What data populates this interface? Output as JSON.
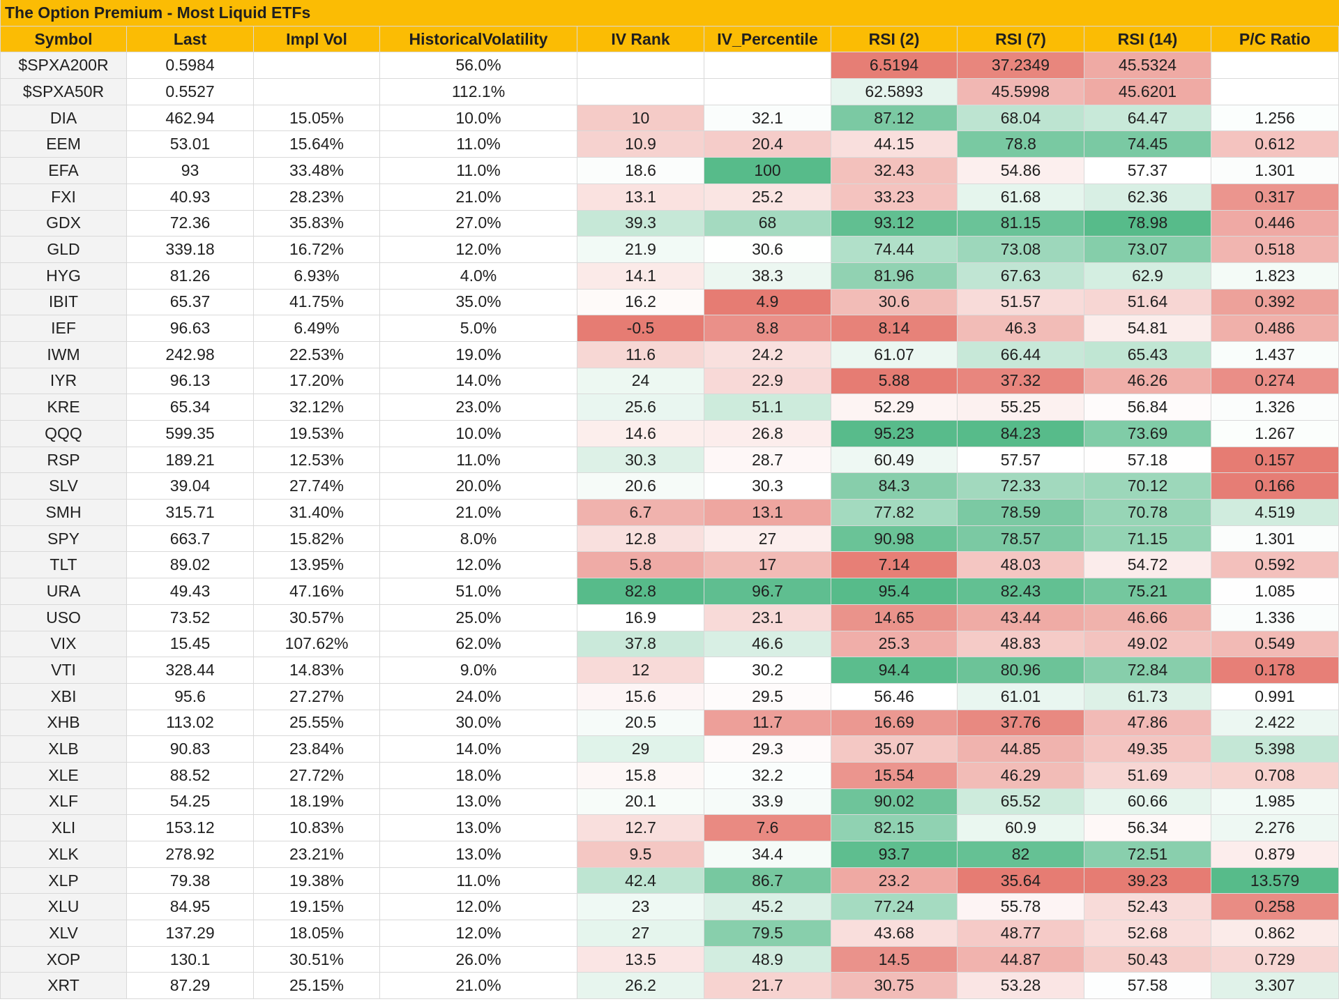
{
  "title": "The Option Premium - Most Liquid ETFs",
  "colors": {
    "header_bg": "#fbbc04",
    "low": "#e67c73",
    "mid": "#ffffff",
    "high": "#57bb8a",
    "symbol_col_bg": "#f3f3f3"
  },
  "columns": [
    "Symbol",
    "Last",
    "Impl Vol",
    "HistoricalVolatility",
    "IV Rank",
    "IV_Percentile",
    "RSI (2)",
    "RSI (7)",
    "RSI (14)",
    "P/C Ratio"
  ],
  "rows": [
    [
      "$SPXA200R",
      "0.5984",
      "",
      "56.0%",
      "",
      "",
      "6.5194",
      "37.2349",
      "45.5324",
      ""
    ],
    [
      "$SPXA50R",
      "0.5527",
      "",
      "112.1%",
      "",
      "",
      "62.5893",
      "45.5998",
      "45.6201",
      ""
    ],
    [
      "DIA",
      "462.94",
      "15.05%",
      "10.0%",
      "10",
      "32.1",
      "87.12",
      "68.04",
      "64.47",
      "1.256"
    ],
    [
      "EEM",
      "53.01",
      "15.64%",
      "11.0%",
      "10.9",
      "20.4",
      "44.15",
      "78.8",
      "74.45",
      "0.612"
    ],
    [
      "EFA",
      "93",
      "33.48%",
      "11.0%",
      "18.6",
      "100",
      "32.43",
      "54.86",
      "57.37",
      "1.301"
    ],
    [
      "FXI",
      "40.93",
      "28.23%",
      "21.0%",
      "13.1",
      "25.2",
      "33.23",
      "61.68",
      "62.36",
      "0.317"
    ],
    [
      "GDX",
      "72.36",
      "35.83%",
      "27.0%",
      "39.3",
      "68",
      "93.12",
      "81.15",
      "78.98",
      "0.446"
    ],
    [
      "GLD",
      "339.18",
      "16.72%",
      "12.0%",
      "21.9",
      "30.6",
      "74.44",
      "73.08",
      "73.07",
      "0.518"
    ],
    [
      "HYG",
      "81.26",
      "6.93%",
      "4.0%",
      "14.1",
      "38.3",
      "81.96",
      "67.63",
      "62.9",
      "1.823"
    ],
    [
      "IBIT",
      "65.37",
      "41.75%",
      "35.0%",
      "16.2",
      "4.9",
      "30.6",
      "51.57",
      "51.64",
      "0.392"
    ],
    [
      "IEF",
      "96.63",
      "6.49%",
      "5.0%",
      "-0.5",
      "8.8",
      "8.14",
      "46.3",
      "54.81",
      "0.486"
    ],
    [
      "IWM",
      "242.98",
      "22.53%",
      "19.0%",
      "11.6",
      "24.2",
      "61.07",
      "66.44",
      "65.43",
      "1.437"
    ],
    [
      "IYR",
      "96.13",
      "17.20%",
      "14.0%",
      "24",
      "22.9",
      "5.88",
      "37.32",
      "46.26",
      "0.274"
    ],
    [
      "KRE",
      "65.34",
      "32.12%",
      "23.0%",
      "25.6",
      "51.1",
      "52.29",
      "55.25",
      "56.84",
      "1.326"
    ],
    [
      "QQQ",
      "599.35",
      "19.53%",
      "10.0%",
      "14.6",
      "26.8",
      "95.23",
      "84.23",
      "73.69",
      "1.267"
    ],
    [
      "RSP",
      "189.21",
      "12.53%",
      "11.0%",
      "30.3",
      "28.7",
      "60.49",
      "57.57",
      "57.18",
      "0.157"
    ],
    [
      "SLV",
      "39.04",
      "27.74%",
      "20.0%",
      "20.6",
      "30.3",
      "84.3",
      "72.33",
      "70.12",
      "0.166"
    ],
    [
      "SMH",
      "315.71",
      "31.40%",
      "21.0%",
      "6.7",
      "13.1",
      "77.82",
      "78.59",
      "70.78",
      "4.519"
    ],
    [
      "SPY",
      "663.7",
      "15.82%",
      "8.0%",
      "12.8",
      "27",
      "90.98",
      "78.57",
      "71.15",
      "1.301"
    ],
    [
      "TLT",
      "89.02",
      "13.95%",
      "12.0%",
      "5.8",
      "17",
      "7.14",
      "48.03",
      "54.72",
      "0.592"
    ],
    [
      "URA",
      "49.43",
      "47.16%",
      "51.0%",
      "82.8",
      "96.7",
      "95.4",
      "82.43",
      "75.21",
      "1.085"
    ],
    [
      "USO",
      "73.52",
      "30.57%",
      "25.0%",
      "16.9",
      "23.1",
      "14.65",
      "43.44",
      "46.66",
      "1.336"
    ],
    [
      "VIX",
      "15.45",
      "107.62%",
      "62.0%",
      "37.8",
      "46.6",
      "25.3",
      "48.83",
      "49.02",
      "0.549"
    ],
    [
      "VTI",
      "328.44",
      "14.83%",
      "9.0%",
      "12",
      "30.2",
      "94.4",
      "80.96",
      "72.84",
      "0.178"
    ],
    [
      "XBI",
      "95.6",
      "27.27%",
      "24.0%",
      "15.6",
      "29.5",
      "56.46",
      "61.01",
      "61.73",
      "0.991"
    ],
    [
      "XHB",
      "113.02",
      "25.55%",
      "30.0%",
      "20.5",
      "11.7",
      "16.69",
      "37.76",
      "47.86",
      "2.422"
    ],
    [
      "XLB",
      "90.83",
      "23.84%",
      "14.0%",
      "29",
      "29.3",
      "35.07",
      "44.85",
      "49.35",
      "5.398"
    ],
    [
      "XLE",
      "88.52",
      "27.72%",
      "18.0%",
      "15.8",
      "32.2",
      "15.54",
      "46.29",
      "51.69",
      "0.708"
    ],
    [
      "XLF",
      "54.25",
      "18.19%",
      "13.0%",
      "20.1",
      "33.9",
      "90.02",
      "65.52",
      "60.66",
      "1.985"
    ],
    [
      "XLI",
      "153.12",
      "10.83%",
      "13.0%",
      "12.7",
      "7.6",
      "82.15",
      "60.9",
      "56.34",
      "2.276"
    ],
    [
      "XLK",
      "278.92",
      "23.21%",
      "13.0%",
      "9.5",
      "34.4",
      "93.7",
      "82",
      "72.51",
      "0.879"
    ],
    [
      "XLP",
      "79.38",
      "19.38%",
      "11.0%",
      "42.4",
      "86.7",
      "23.2",
      "35.64",
      "39.23",
      "13.579"
    ],
    [
      "XLU",
      "84.95",
      "19.15%",
      "12.0%",
      "23",
      "45.2",
      "77.24",
      "55.78",
      "52.43",
      "0.258"
    ],
    [
      "XLV",
      "137.29",
      "18.05%",
      "12.0%",
      "27",
      "79.5",
      "43.68",
      "48.77",
      "52.68",
      "0.862"
    ],
    [
      "XOP",
      "130.1",
      "30.51%",
      "26.0%",
      "13.5",
      "48.9",
      "14.5",
      "44.87",
      "50.43",
      "0.729"
    ],
    [
      "XRT",
      "87.29",
      "25.15%",
      "21.0%",
      "26.2",
      "21.7",
      "30.75",
      "53.28",
      "57.58",
      "3.307"
    ]
  ]
}
